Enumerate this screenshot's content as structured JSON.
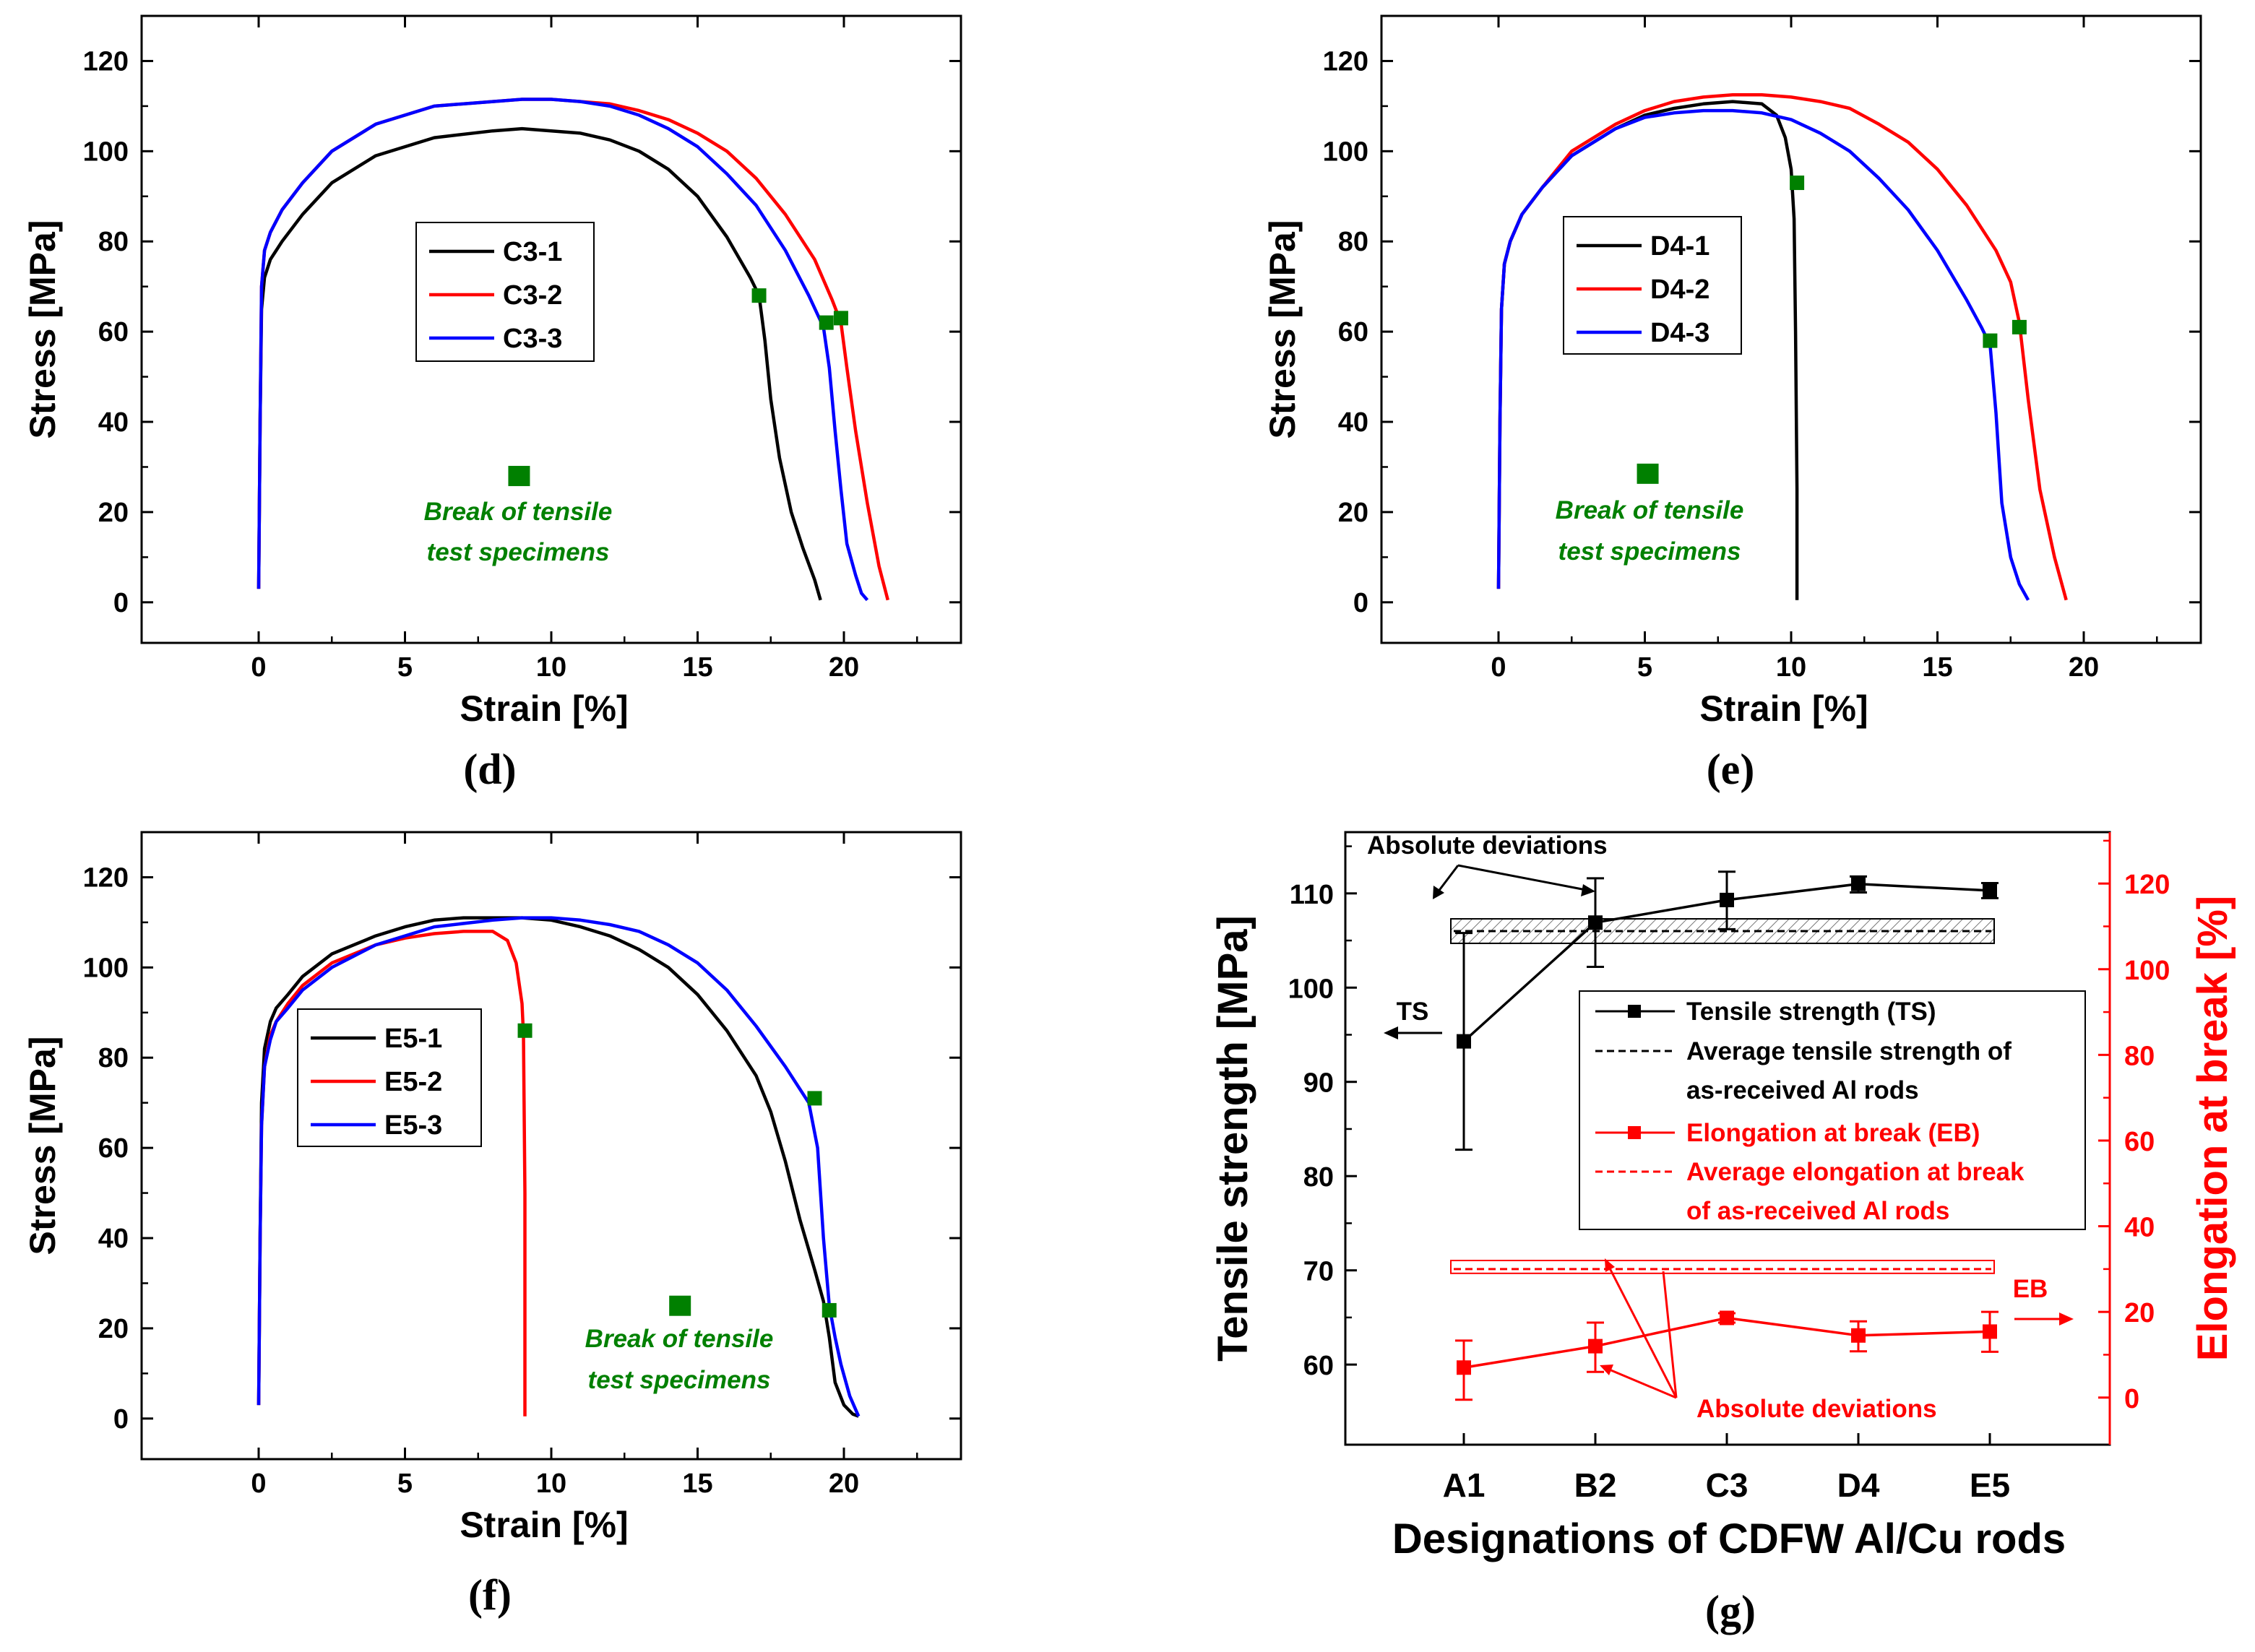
{
  "colors": {
    "black": "#000000",
    "red": "#ff0000",
    "blue": "#0000ff",
    "green": "#008000"
  },
  "panels": [
    {
      "id": "d",
      "label": "(d)",
      "xlabel": "Strain [%]",
      "ylabel": "Stress [MPa]",
      "xticks": [
        0,
        5,
        10,
        15,
        20
      ],
      "yticks": [
        0,
        20,
        40,
        60,
        80,
        100,
        120
      ],
      "annotation": [
        "Break of tensile",
        "test specimens"
      ],
      "legend": [
        {
          "name": "C3-1",
          "color": "#000000"
        },
        {
          "name": "C3-2",
          "color": "#ff0000"
        },
        {
          "name": "C3-3",
          "color": "#0000ff"
        }
      ]
    },
    {
      "id": "e",
      "label": "(e)",
      "xlabel": "Strain [%]",
      "ylabel": "Stress [MPa]",
      "xticks": [
        0,
        5,
        10,
        15,
        20
      ],
      "yticks": [
        0,
        20,
        40,
        60,
        80,
        100,
        120
      ],
      "annotation": [
        "Break of tensile",
        "test specimens"
      ],
      "legend": [
        {
          "name": "D4-1",
          "color": "#000000"
        },
        {
          "name": "D4-2",
          "color": "#ff0000"
        },
        {
          "name": "D4-3",
          "color": "#0000ff"
        }
      ]
    },
    {
      "id": "f",
      "label": "(f)",
      "xlabel": "Strain [%]",
      "ylabel": "Stress [MPa]",
      "xticks": [
        0,
        5,
        10,
        15,
        20
      ],
      "yticks": [
        0,
        20,
        40,
        60,
        80,
        100,
        120
      ],
      "annotation": [
        "Break of tensile",
        "test specimens"
      ],
      "legend": [
        {
          "name": "E5-1",
          "color": "#000000"
        },
        {
          "name": "E5-2",
          "color": "#ff0000"
        },
        {
          "name": "E5-3",
          "color": "#0000ff"
        }
      ]
    },
    {
      "id": "g",
      "label": "(g)",
      "xlabel": "Designations of  CDFW Al/Cu rods",
      "ylabel_left": "Tensile strength [MPa]",
      "ylabel_right": "Elongation at break [%]",
      "categories": [
        "A1",
        "B2",
        "C3",
        "D4",
        "E5"
      ],
      "yticks_left": [
        60,
        70,
        80,
        90,
        100,
        110
      ],
      "yticks_right": [
        0,
        20,
        40,
        60,
        80,
        100,
        120
      ],
      "ts_label": "TS",
      "eb_label": "EB",
      "abs_dev_top": "Absolute deviations",
      "abs_dev_bottom": "Absolute deviations",
      "legend": [
        {
          "lines": [
            "Tensile strength (TS)"
          ],
          "color": "#000000",
          "style": "solid-marker"
        },
        {
          "lines": [
            "Average tensile strength of",
            "as-received Al rods"
          ],
          "color": "#000000",
          "style": "dashed"
        },
        {
          "lines": [
            "Elongation at break (EB)"
          ],
          "color": "#ff0000",
          "style": "solid-marker"
        },
        {
          "lines": [
            "Average elongation at break",
            "of as-received Al rods"
          ],
          "color": "#ff0000",
          "style": "dashed"
        }
      ]
    }
  ],
  "chart_data": [
    {
      "type": "line",
      "id": "d",
      "xlim": [
        -4,
        24
      ],
      "ylim": [
        -9,
        130
      ],
      "series": [
        {
          "name": "C3-1",
          "color": "#000000",
          "x": [
            0,
            0.05,
            0.1,
            0.2,
            0.4,
            0.8,
            1.5,
            2.5,
            4,
            6,
            8,
            9,
            10,
            11,
            12,
            13,
            14,
            15,
            16,
            16.8,
            17.1,
            17.3,
            17.5,
            17.8,
            18.2,
            18.6,
            19,
            19.2
          ],
          "y": [
            3,
            40,
            65,
            72,
            76,
            80,
            86,
            93,
            99,
            103,
            104.5,
            105,
            104.5,
            104,
            102.5,
            100,
            96,
            90,
            81,
            72,
            68,
            58,
            45,
            32,
            20,
            12,
            5,
            0.5
          ]
        },
        {
          "name": "C3-2",
          "color": "#ff0000",
          "x": [
            0,
            0.05,
            0.1,
            0.2,
            0.4,
            0.8,
            1.5,
            2.5,
            4,
            6,
            8,
            9,
            10,
            11,
            12,
            13,
            14,
            15,
            16,
            17,
            18,
            19,
            19.6,
            19.9,
            20.1,
            20.4,
            20.8,
            21.2,
            21.5
          ],
          "y": [
            3,
            40,
            70,
            78,
            82,
            87,
            93,
            100,
            106,
            110,
            111,
            111.5,
            111.5,
            111,
            110.5,
            109,
            107,
            104,
            100,
            94,
            86,
            76,
            67,
            62,
            52,
            38,
            22,
            8,
            0.5
          ]
        },
        {
          "name": "C3-3",
          "color": "#0000ff",
          "x": [
            0,
            0.05,
            0.1,
            0.2,
            0.4,
            0.8,
            1.5,
            2.5,
            4,
            6,
            8,
            9,
            10,
            11,
            12,
            13,
            14,
            15,
            16,
            17,
            18,
            18.8,
            19.3,
            19.5,
            19.7,
            19.9,
            20.1,
            20.4,
            20.6,
            20.8
          ],
          "y": [
            3,
            40,
            70,
            78,
            82,
            87,
            93,
            100,
            106,
            110,
            111,
            111.5,
            111.5,
            111,
            110,
            108,
            105,
            101,
            95,
            88,
            78,
            68,
            61,
            52,
            38,
            25,
            13,
            6,
            2,
            0.5
          ]
        }
      ],
      "breaks": [
        {
          "x": 17.1,
          "y": 68
        },
        {
          "x": 19.4,
          "y": 62
        },
        {
          "x": 19.9,
          "y": 63
        }
      ],
      "legend_marker": {
        "x": 8.9,
        "y": 28
      }
    },
    {
      "type": "line",
      "id": "e",
      "xlim": [
        -4,
        24
      ],
      "ylim": [
        -9,
        130
      ],
      "series": [
        {
          "name": "D4-1",
          "color": "#000000",
          "x": [
            0,
            0.05,
            0.1,
            0.2,
            0.4,
            0.8,
            1.5,
            2.5,
            4,
            5,
            6,
            7,
            8,
            9,
            9.5,
            9.8,
            10,
            10.1,
            10.15,
            10.2,
            10.2
          ],
          "y": [
            3,
            40,
            65,
            75,
            80,
            86,
            92,
            99,
            105,
            108,
            109.5,
            110.5,
            111,
            110.5,
            108,
            103,
            96,
            85,
            60,
            25,
            0.5
          ]
        },
        {
          "name": "D4-2",
          "color": "#ff0000",
          "x": [
            0,
            0.05,
            0.1,
            0.2,
            0.4,
            0.8,
            1.5,
            2.5,
            4,
            5,
            6,
            7,
            8,
            9,
            10,
            11,
            12,
            13,
            14,
            15,
            16,
            17,
            17.5,
            17.8,
            18.1,
            18.5,
            19,
            19.4
          ],
          "y": [
            3,
            40,
            65,
            75,
            80,
            86,
            92,
            100,
            106,
            109,
            111,
            112,
            112.5,
            112.5,
            112,
            111,
            109.5,
            106,
            102,
            96,
            88,
            78,
            71,
            62,
            45,
            25,
            10,
            0.5
          ]
        },
        {
          "name": "D4-3",
          "color": "#0000ff",
          "x": [
            0,
            0.05,
            0.1,
            0.2,
            0.4,
            0.8,
            1.5,
            2.5,
            4,
            5,
            6,
            7,
            8,
            9,
            10,
            11,
            12,
            13,
            14,
            15,
            16,
            16.5,
            16.8,
            17,
            17.2,
            17.5,
            17.8,
            18.1
          ],
          "y": [
            3,
            40,
            65,
            75,
            80,
            86,
            92,
            99,
            105,
            107.5,
            108.5,
            109,
            109,
            108.5,
            107,
            104,
            100,
            94,
            87,
            78,
            67,
            61,
            57,
            42,
            22,
            10,
            4,
            0.5
          ]
        }
      ],
      "breaks": [
        {
          "x": 10.2,
          "y": 93
        },
        {
          "x": 16.8,
          "y": 58
        },
        {
          "x": 17.8,
          "y": 61
        }
      ],
      "legend_marker": {
        "x": 5.1,
        "y": 28.5
      }
    },
    {
      "type": "line",
      "id": "f",
      "xlim": [
        -4,
        24
      ],
      "ylim": [
        -9,
        130
      ],
      "series": [
        {
          "name": "E5-1",
          "color": "#000000",
          "x": [
            0,
            0.05,
            0.1,
            0.2,
            0.4,
            0.6,
            1,
            1.5,
            2.5,
            4,
            5,
            6,
            7,
            8,
            9,
            10,
            11,
            12,
            13,
            14,
            15,
            16,
            17,
            17.5,
            18,
            18.5,
            19,
            19.3,
            19.5,
            19.7,
            20,
            20.3,
            20.5
          ],
          "y": [
            3,
            40,
            70,
            82,
            88,
            91,
            94,
            98,
            103,
            107,
            109,
            110.5,
            111,
            111,
            111,
            110.5,
            109,
            107,
            104,
            100,
            94,
            86,
            76,
            68,
            57,
            44,
            33,
            26,
            18,
            8,
            3,
            1,
            0.5
          ]
        },
        {
          "name": "E5-2",
          "color": "#ff0000",
          "x": [
            0,
            0.05,
            0.1,
            0.2,
            0.4,
            0.6,
            1,
            1.5,
            2.5,
            4,
            5,
            6,
            7,
            8,
            8.5,
            8.8,
            9,
            9.05,
            9.1,
            9.1,
            9.1
          ],
          "y": [
            3,
            40,
            65,
            78,
            85,
            88,
            92,
            96,
            101,
            105,
            106.5,
            107.5,
            108,
            108,
            106,
            101,
            92,
            85,
            50,
            10,
            0.5
          ]
        },
        {
          "name": "E5-3",
          "color": "#0000ff",
          "x": [
            0,
            0.05,
            0.1,
            0.2,
            0.4,
            0.6,
            1,
            1.5,
            2.5,
            4,
            6,
            8,
            9,
            10,
            11,
            12,
            13,
            14,
            15,
            16,
            17,
            18,
            18.8,
            19.1,
            19.3,
            19.5,
            19.7,
            19.9,
            20.2,
            20.5
          ],
          "y": [
            3,
            40,
            65,
            78,
            84,
            88,
            91,
            95,
            100,
            105,
            109,
            110.5,
            111,
            111,
            110.5,
            109.5,
            108,
            105,
            101,
            95,
            87,
            78,
            70,
            60,
            40,
            25,
            18,
            12,
            5,
            0.5
          ]
        }
      ],
      "breaks": [
        {
          "x": 9.1,
          "y": 86
        },
        {
          "x": 19,
          "y": 71
        },
        {
          "x": 19.5,
          "y": 24
        }
      ],
      "legend_marker": {
        "x": 14.4,
        "y": 25
      }
    },
    {
      "type": "line-errorbar",
      "id": "g",
      "categories": [
        "A1",
        "B2",
        "C3",
        "D4",
        "E5"
      ],
      "ylim_left": [
        51.5,
        116.5
      ],
      "ylim_right": [
        -11,
        132
      ],
      "series": [
        {
          "name": "Tensile strength (TS)",
          "axis": "left",
          "color": "#000000",
          "values": [
            94.3,
            106.9,
            109.3,
            111,
            110.3
          ],
          "err_low": [
            82.8,
            102.2,
            106.2,
            110.1,
            109.5
          ],
          "err_high": [
            105.8,
            111.6,
            112.3,
            111.8,
            111.1
          ]
        },
        {
          "name": "Elongation at break (EB)",
          "axis": "right",
          "color": "#ff0000",
          "values": [
            7,
            12,
            18.6,
            14.5,
            15.4
          ],
          "err_low": [
            -0.5,
            6,
            17.5,
            10.8,
            10.7
          ],
          "err_high": [
            13.3,
            17.5,
            19.7,
            17.8,
            20
          ]
        }
      ],
      "avg_ts": {
        "value": 106,
        "band": [
          104.7,
          107.3
        ]
      },
      "avg_eb": {
        "value": 30,
        "band": [
          29,
          32
        ]
      }
    }
  ]
}
